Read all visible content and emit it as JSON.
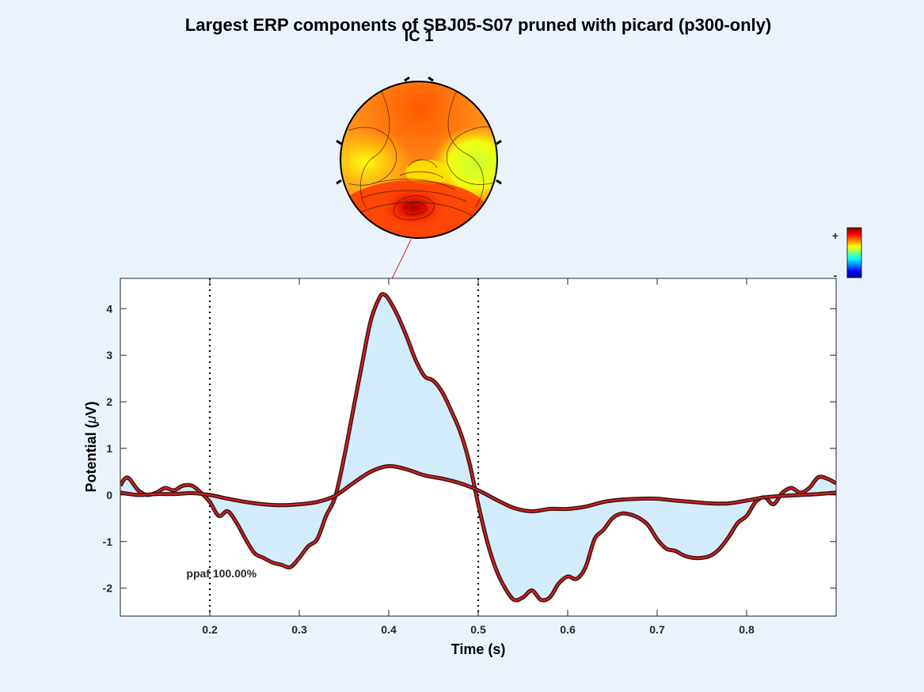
{
  "chart_data": {
    "type": "line",
    "title": "Largest ERP components of SBJ05-S07 pruned with picard (p300-only)",
    "xlabel": "Time (s)",
    "ylabel_prefix": "Potential (",
    "ylabel_symbol": "μ",
    "ylabel_suffix": "V)",
    "xlim": [
      0.1,
      0.9
    ],
    "ylim": [
      -2.6,
      4.65
    ],
    "xticks": [
      0.2,
      0.3,
      0.4,
      0.5,
      0.6,
      0.7,
      0.8
    ],
    "xtick_labels": [
      "0.2",
      "0.3",
      "0.4",
      "0.5",
      "0.6",
      "0.7",
      "0.8"
    ],
    "yticks": [
      -2,
      -1,
      0,
      1,
      2,
      3,
      4
    ],
    "ytick_labels": [
      "-2",
      "-1",
      "0",
      "1",
      "2",
      "3",
      "4"
    ],
    "vlines": [
      0.2,
      0.5
    ],
    "annotation": "ppaf 100.00%",
    "annotation_position": {
      "x": 0.18,
      "y": -1.68
    },
    "grid": false,
    "fill_color": "#d3ecfb",
    "line_color": "#cc2222",
    "series": [
      {
        "x": [
          0.1,
          0.105,
          0.11,
          0.12,
          0.13,
          0.14,
          0.15,
          0.16,
          0.17,
          0.18,
          0.19,
          0.2,
          0.21,
          0.22,
          0.23,
          0.24,
          0.25,
          0.26,
          0.27,
          0.28,
          0.29,
          0.3,
          0.31,
          0.32,
          0.33,
          0.34,
          0.35,
          0.36,
          0.37,
          0.38,
          0.39,
          0.395,
          0.4,
          0.41,
          0.42,
          0.43,
          0.44,
          0.45,
          0.46,
          0.47,
          0.48,
          0.49,
          0.5,
          0.51,
          0.52,
          0.53,
          0.54,
          0.55,
          0.56,
          0.57,
          0.58,
          0.59,
          0.6,
          0.61,
          0.62,
          0.63,
          0.64,
          0.65,
          0.66,
          0.67,
          0.68,
          0.69,
          0.7,
          0.71,
          0.72,
          0.73,
          0.74,
          0.75,
          0.76,
          0.77,
          0.78,
          0.79,
          0.8,
          0.81,
          0.82,
          0.83,
          0.84,
          0.85,
          0.86,
          0.87,
          0.88,
          0.89,
          0.9
        ],
        "values": [
          0.2,
          0.35,
          0.35,
          0.1,
          0.0,
          0.05,
          0.15,
          0.1,
          0.2,
          0.2,
          0.05,
          -0.15,
          -0.45,
          -0.35,
          -0.6,
          -0.95,
          -1.25,
          -1.35,
          -1.45,
          -1.5,
          -1.55,
          -1.35,
          -1.1,
          -0.95,
          -0.45,
          -0.05,
          0.8,
          1.8,
          2.8,
          3.75,
          4.25,
          4.3,
          4.2,
          3.85,
          3.4,
          2.9,
          2.55,
          2.45,
          2.2,
          1.8,
          1.35,
          0.7,
          -0.2,
          -1.0,
          -1.6,
          -2.0,
          -2.25,
          -2.2,
          -2.05,
          -2.25,
          -2.2,
          -1.9,
          -1.75,
          -1.8,
          -1.55,
          -0.95,
          -0.75,
          -0.5,
          -0.4,
          -0.42,
          -0.5,
          -0.65,
          -0.95,
          -1.15,
          -1.2,
          -1.3,
          -1.35,
          -1.35,
          -1.3,
          -1.15,
          -0.9,
          -0.6,
          -0.45,
          -0.15,
          -0.05,
          -0.2,
          0.05,
          0.15,
          0.05,
          0.15,
          0.38,
          0.35,
          0.25
        ]
      },
      {
        "x": [
          0.1,
          0.12,
          0.14,
          0.16,
          0.18,
          0.2,
          0.22,
          0.24,
          0.26,
          0.28,
          0.3,
          0.32,
          0.34,
          0.36,
          0.38,
          0.4,
          0.42,
          0.44,
          0.46,
          0.48,
          0.5,
          0.52,
          0.54,
          0.56,
          0.58,
          0.6,
          0.62,
          0.64,
          0.66,
          0.68,
          0.7,
          0.72,
          0.74,
          0.76,
          0.78,
          0.8,
          0.82,
          0.84,
          0.86,
          0.88,
          0.9
        ],
        "values": [
          0.05,
          0.0,
          0.02,
          0.02,
          0.04,
          0.0,
          -0.08,
          -0.15,
          -0.2,
          -0.22,
          -0.2,
          -0.15,
          -0.02,
          0.25,
          0.5,
          0.62,
          0.55,
          0.42,
          0.35,
          0.25,
          0.1,
          -0.1,
          -0.28,
          -0.35,
          -0.3,
          -0.3,
          -0.25,
          -0.15,
          -0.1,
          -0.08,
          -0.08,
          -0.12,
          -0.15,
          -0.18,
          -0.18,
          -0.12,
          -0.05,
          -0.02,
          0.0,
          0.02,
          0.05
        ]
      }
    ],
    "topomap": {
      "label": "IC 1",
      "colorbar_plus": "+",
      "colorbar_minus": "-"
    }
  }
}
